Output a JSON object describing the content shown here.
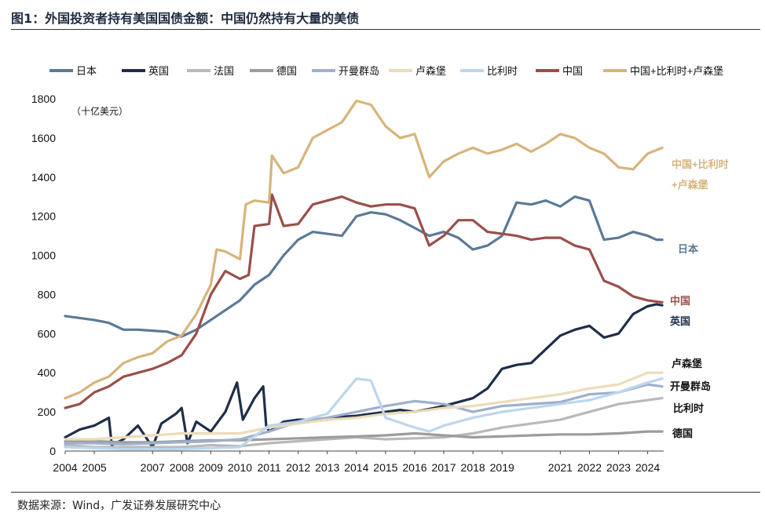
{
  "header": {
    "title": "图1：外国投资者持有美国国债金额：中国仍然持有大量的美债"
  },
  "footer": {
    "source": "数据来源：Wind，广发证券发展研究中心"
  },
  "chart_data": {
    "type": "line",
    "unit_label": "（十亿美元）",
    "xlim": [
      2004,
      2024.55
    ],
    "ylim": [
      0,
      1800
    ],
    "yticks": [
      0,
      200,
      400,
      600,
      800,
      1000,
      1200,
      1400,
      1600,
      1800
    ],
    "xticks": [
      2004,
      2005,
      2007,
      2008,
      2009,
      2010,
      2011,
      2012,
      2013,
      2014,
      2015,
      2016,
      2017,
      2018,
      2019,
      2021,
      2022,
      2023,
      2024
    ],
    "legend_position": "top",
    "series": [
      {
        "name": "日本",
        "color": "#5b7a96",
        "end_label": "日本",
        "points": [
          [
            2004,
            690
          ],
          [
            2004.5,
            680
          ],
          [
            2005,
            670
          ],
          [
            2005.5,
            655
          ],
          [
            2006,
            620
          ],
          [
            2006.5,
            620
          ],
          [
            2007,
            615
          ],
          [
            2007.5,
            610
          ],
          [
            2008,
            585
          ],
          [
            2008.5,
            620
          ],
          [
            2009,
            670
          ],
          [
            2009.5,
            720
          ],
          [
            2010,
            770
          ],
          [
            2010.5,
            850
          ],
          [
            2011,
            900
          ],
          [
            2011.5,
            1000
          ],
          [
            2012,
            1080
          ],
          [
            2012.5,
            1120
          ],
          [
            2013,
            1110
          ],
          [
            2013.5,
            1100
          ],
          [
            2014,
            1200
          ],
          [
            2014.5,
            1220
          ],
          [
            2015,
            1210
          ],
          [
            2015.5,
            1180
          ],
          [
            2016,
            1140
          ],
          [
            2016.5,
            1100
          ],
          [
            2017,
            1120
          ],
          [
            2017.5,
            1090
          ],
          [
            2018,
            1030
          ],
          [
            2018.5,
            1050
          ],
          [
            2019,
            1100
          ],
          [
            2019.5,
            1270
          ],
          [
            2020,
            1260
          ],
          [
            2020.5,
            1280
          ],
          [
            2021,
            1250
          ],
          [
            2021.5,
            1300
          ],
          [
            2022,
            1280
          ],
          [
            2022.5,
            1080
          ],
          [
            2023,
            1090
          ],
          [
            2023.5,
            1120
          ],
          [
            2024,
            1100
          ],
          [
            2024.3,
            1080
          ],
          [
            2024.5,
            1080
          ]
        ]
      },
      {
        "name": "英国",
        "color": "#1f2f49",
        "end_label": "英国",
        "points": [
          [
            2004,
            70
          ],
          [
            2004.5,
            110
          ],
          [
            2005,
            130
          ],
          [
            2005.5,
            170
          ],
          [
            2005.6,
            30
          ],
          [
            2006,
            60
          ],
          [
            2006.5,
            130
          ],
          [
            2007,
            20
          ],
          [
            2007.3,
            140
          ],
          [
            2007.8,
            190
          ],
          [
            2008,
            220
          ],
          [
            2008.2,
            40
          ],
          [
            2008.5,
            150
          ],
          [
            2009,
            100
          ],
          [
            2009.5,
            200
          ],
          [
            2009.9,
            350
          ],
          [
            2010.1,
            160
          ],
          [
            2010.5,
            270
          ],
          [
            2010.8,
            330
          ],
          [
            2010.9,
            130
          ],
          [
            2011,
            100
          ],
          [
            2011.5,
            150
          ],
          [
            2012,
            160
          ],
          [
            2012.5,
            160
          ],
          [
            2013,
            160
          ],
          [
            2013.5,
            175
          ],
          [
            2014,
            180
          ],
          [
            2014.5,
            190
          ],
          [
            2015,
            200
          ],
          [
            2015.5,
            210
          ],
          [
            2016,
            200
          ],
          [
            2016.5,
            215
          ],
          [
            2017,
            230
          ],
          [
            2017.5,
            250
          ],
          [
            2018,
            270
          ],
          [
            2018.5,
            320
          ],
          [
            2019,
            420
          ],
          [
            2019.5,
            440
          ],
          [
            2020,
            450
          ],
          [
            2020.5,
            520
          ],
          [
            2021,
            590
          ],
          [
            2021.5,
            620
          ],
          [
            2022,
            640
          ],
          [
            2022.5,
            580
          ],
          [
            2023,
            600
          ],
          [
            2023.5,
            700
          ],
          [
            2024,
            740
          ],
          [
            2024.3,
            750
          ],
          [
            2024.5,
            745
          ]
        ]
      },
      {
        "name": "法国",
        "color": "#b9b9b9",
        "end_label": "",
        "points": [
          [
            2004,
            30
          ],
          [
            2005,
            20
          ],
          [
            2006,
            20
          ],
          [
            2007,
            20
          ],
          [
            2008,
            20
          ],
          [
            2009,
            30
          ],
          [
            2010,
            25
          ],
          [
            2011,
            40
          ],
          [
            2012,
            50
          ],
          [
            2013,
            60
          ],
          [
            2014,
            70
          ],
          [
            2015,
            60
          ],
          [
            2016,
            65
          ],
          [
            2017,
            70
          ],
          [
            2018,
            90
          ],
          [
            2019,
            120
          ],
          [
            2020,
            140
          ],
          [
            2021,
            160
          ],
          [
            2022,
            200
          ],
          [
            2023,
            240
          ],
          [
            2024,
            260
          ],
          [
            2024.5,
            270
          ]
        ]
      },
      {
        "name": "德国",
        "color": "#9c9c9c",
        "end_label": "德国",
        "points": [
          [
            2004,
            50
          ],
          [
            2005,
            50
          ],
          [
            2006,
            45
          ],
          [
            2007,
            45
          ],
          [
            2008,
            50
          ],
          [
            2009,
            55
          ],
          [
            2010,
            55
          ],
          [
            2011,
            60
          ],
          [
            2012,
            65
          ],
          [
            2013,
            70
          ],
          [
            2014,
            75
          ],
          [
            2015,
            80
          ],
          [
            2016,
            90
          ],
          [
            2017,
            80
          ],
          [
            2018,
            70
          ],
          [
            2019,
            75
          ],
          [
            2020,
            80
          ],
          [
            2021,
            85
          ],
          [
            2022,
            85
          ],
          [
            2023,
            90
          ],
          [
            2024,
            100
          ],
          [
            2024.5,
            100
          ]
        ]
      },
      {
        "name": "开曼群岛",
        "color": "#9fb0cc",
        "end_label": "开曼群岛",
        "points": [
          [
            2004,
            40
          ],
          [
            2005,
            40
          ],
          [
            2006,
            35
          ],
          [
            2007,
            40
          ],
          [
            2008,
            45
          ],
          [
            2009,
            50
          ],
          [
            2010,
            60
          ],
          [
            2011,
            100
          ],
          [
            2012,
            150
          ],
          [
            2013,
            170
          ],
          [
            2014,
            200
          ],
          [
            2015,
            230
          ],
          [
            2016,
            255
          ],
          [
            2017,
            240
          ],
          [
            2018,
            200
          ],
          [
            2019,
            230
          ],
          [
            2020,
            240
          ],
          [
            2021,
            250
          ],
          [
            2022,
            290
          ],
          [
            2023,
            300
          ],
          [
            2024,
            340
          ],
          [
            2024.5,
            330
          ]
        ]
      },
      {
        "name": "卢森堡",
        "color": "#ecdcb8",
        "end_label": "卢森堡",
        "points": [
          [
            2004,
            60
          ],
          [
            2005,
            60
          ],
          [
            2006,
            70
          ],
          [
            2007,
            80
          ],
          [
            2008,
            90
          ],
          [
            2009,
            90
          ],
          [
            2010,
            90
          ],
          [
            2011,
            120
          ],
          [
            2012,
            140
          ],
          [
            2013,
            160
          ],
          [
            2014,
            170
          ],
          [
            2015,
            190
          ],
          [
            2016,
            200
          ],
          [
            2017,
            220
          ],
          [
            2018,
            230
          ],
          [
            2019,
            250
          ],
          [
            2020,
            270
          ],
          [
            2021,
            290
          ],
          [
            2022,
            320
          ],
          [
            2023,
            340
          ],
          [
            2024,
            400
          ],
          [
            2024.5,
            400
          ]
        ]
      },
      {
        "name": "比利时",
        "color": "#bcd6ee",
        "end_label": "比利时",
        "points": [
          [
            2004,
            20
          ],
          [
            2005,
            15
          ],
          [
            2006,
            10
          ],
          [
            2007,
            10
          ],
          [
            2008,
            10
          ],
          [
            2009,
            15
          ],
          [
            2010,
            20
          ],
          [
            2011,
            130
          ],
          [
            2012,
            150
          ],
          [
            2013,
            190
          ],
          [
            2014,
            370
          ],
          [
            2014.5,
            360
          ],
          [
            2015,
            170
          ],
          [
            2016,
            120
          ],
          [
            2016.5,
            100
          ],
          [
            2017,
            130
          ],
          [
            2018,
            170
          ],
          [
            2019,
            200
          ],
          [
            2020,
            220
          ],
          [
            2021,
            240
          ],
          [
            2022,
            260
          ],
          [
            2023,
            300
          ],
          [
            2024,
            350
          ],
          [
            2024.5,
            370
          ]
        ]
      },
      {
        "name": "中国",
        "color": "#9b4f4a",
        "end_label": "中国",
        "points": [
          [
            2004,
            220
          ],
          [
            2004.5,
            240
          ],
          [
            2005,
            300
          ],
          [
            2005.5,
            330
          ],
          [
            2006,
            380
          ],
          [
            2006.5,
            400
          ],
          [
            2007,
            420
          ],
          [
            2007.5,
            450
          ],
          [
            2008,
            490
          ],
          [
            2008.5,
            600
          ],
          [
            2009,
            800
          ],
          [
            2009.5,
            920
          ],
          [
            2010,
            880
          ],
          [
            2010.3,
            900
          ],
          [
            2010.5,
            1150
          ],
          [
            2011,
            1160
          ],
          [
            2011.1,
            1310
          ],
          [
            2011.5,
            1150
          ],
          [
            2012,
            1160
          ],
          [
            2012.5,
            1260
          ],
          [
            2013,
            1280
          ],
          [
            2013.5,
            1300
          ],
          [
            2014,
            1270
          ],
          [
            2014.5,
            1250
          ],
          [
            2015,
            1260
          ],
          [
            2015.5,
            1260
          ],
          [
            2016,
            1240
          ],
          [
            2016.5,
            1050
          ],
          [
            2017,
            1100
          ],
          [
            2017.5,
            1180
          ],
          [
            2018,
            1180
          ],
          [
            2018.5,
            1120
          ],
          [
            2019,
            1110
          ],
          [
            2019.5,
            1100
          ],
          [
            2020,
            1080
          ],
          [
            2020.5,
            1090
          ],
          [
            2021,
            1090
          ],
          [
            2021.5,
            1050
          ],
          [
            2022,
            1030
          ],
          [
            2022.5,
            870
          ],
          [
            2023,
            840
          ],
          [
            2023.5,
            790
          ],
          [
            2024,
            770
          ],
          [
            2024.5,
            760
          ]
        ]
      },
      {
        "name": "中国+比利时+卢森堡",
        "color": "#d6b47a",
        "end_label": "中国+比利时\n+卢森堡",
        "points": [
          [
            2004,
            270
          ],
          [
            2004.5,
            300
          ],
          [
            2005,
            350
          ],
          [
            2005.5,
            380
          ],
          [
            2006,
            450
          ],
          [
            2006.5,
            480
          ],
          [
            2007,
            500
          ],
          [
            2007.5,
            560
          ],
          [
            2008,
            590
          ],
          [
            2008.5,
            700
          ],
          [
            2009,
            850
          ],
          [
            2009.2,
            1030
          ],
          [
            2009.5,
            1020
          ],
          [
            2010,
            980
          ],
          [
            2010.2,
            1260
          ],
          [
            2010.5,
            1280
          ],
          [
            2011,
            1270
          ],
          [
            2011.1,
            1510
          ],
          [
            2011.5,
            1420
          ],
          [
            2012,
            1450
          ],
          [
            2012.5,
            1600
          ],
          [
            2013,
            1640
          ],
          [
            2013.5,
            1680
          ],
          [
            2014,
            1790
          ],
          [
            2014.5,
            1770
          ],
          [
            2015,
            1660
          ],
          [
            2015.5,
            1600
          ],
          [
            2016,
            1620
          ],
          [
            2016.5,
            1400
          ],
          [
            2017,
            1480
          ],
          [
            2017.5,
            1520
          ],
          [
            2018,
            1550
          ],
          [
            2018.5,
            1520
          ],
          [
            2019,
            1540
          ],
          [
            2019.5,
            1570
          ],
          [
            2020,
            1530
          ],
          [
            2020.5,
            1570
          ],
          [
            2021,
            1620
          ],
          [
            2021.5,
            1600
          ],
          [
            2022,
            1550
          ],
          [
            2022.5,
            1520
          ],
          [
            2023,
            1450
          ],
          [
            2023.5,
            1440
          ],
          [
            2024,
            1520
          ],
          [
            2024.5,
            1550
          ]
        ]
      }
    ]
  }
}
